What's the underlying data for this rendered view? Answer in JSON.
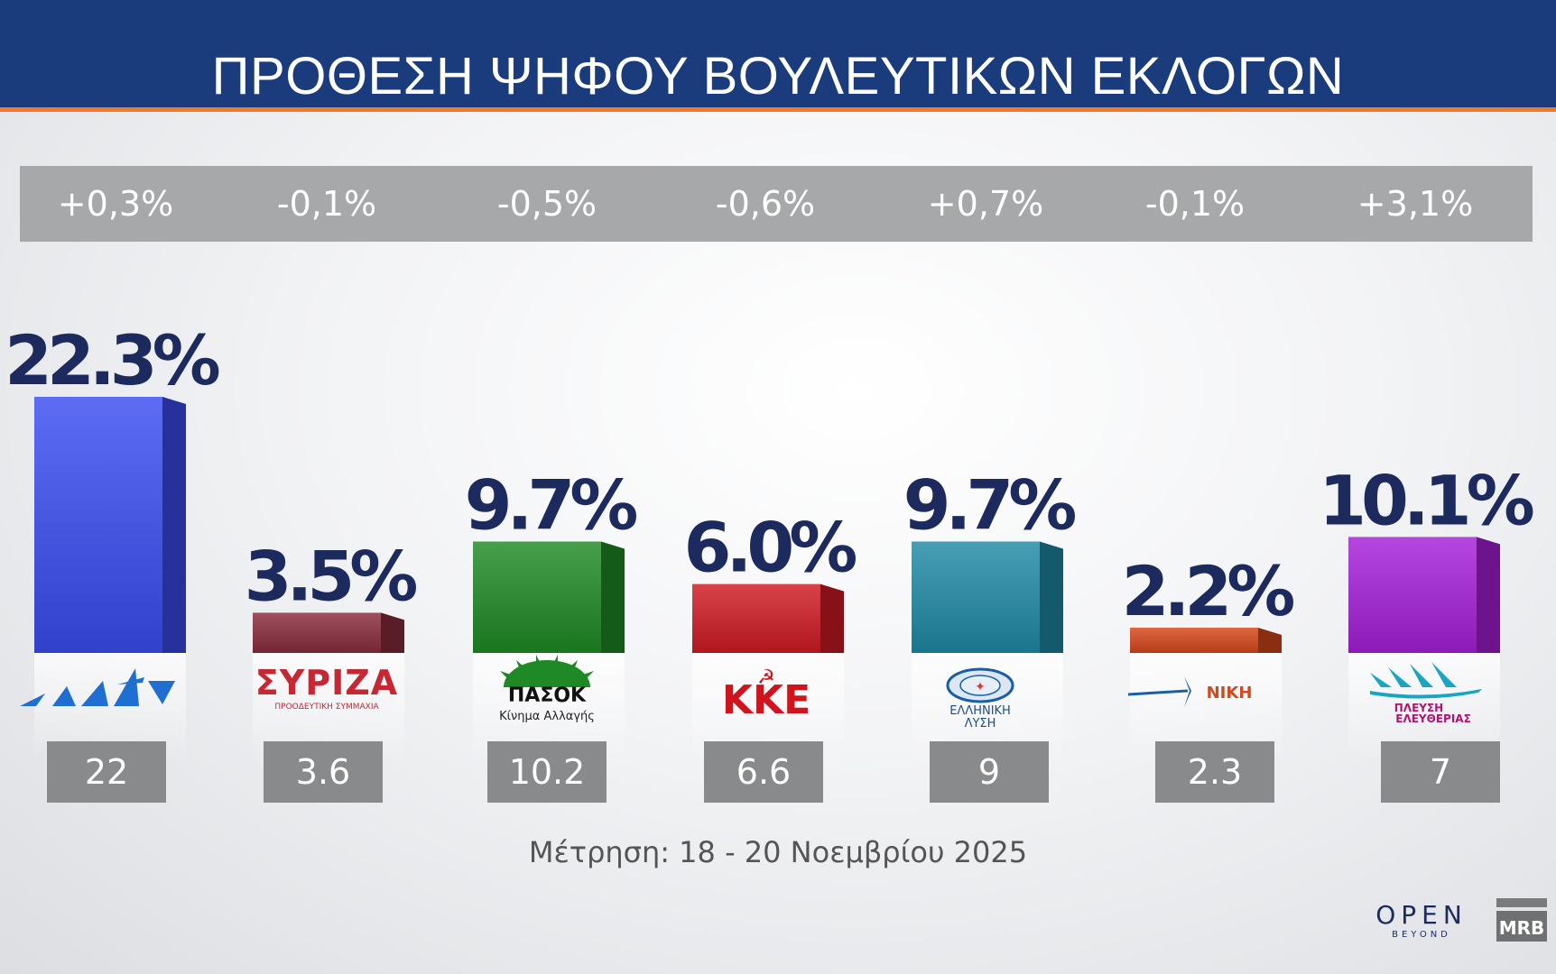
{
  "title": "ΠΡΟΘΕΣΗ ΨΗΦΟΥ ΒΟΥΛΕΥΤΙΚΩΝ ΕΚΛΟΓΩΝ",
  "footnote": "Μέτρηση: 18 - 20 Νοεμβρίου 2025",
  "broadcaster": "OPEN",
  "broadcaster_tagline": "BEYOND",
  "pollster": "MRB",
  "party_logos": [
    "ΝΔ",
    "ΣΥΡΙΖΑ",
    "ΠΑΣΟΚ",
    "ΚΚΕ",
    "ΕΛΛΗΝΙΚΗ ΛΥΣΗ",
    "ΝΙΚΗ",
    "ΠΛΕΥΣΗ ΕΛΕΥΘΕΡΙΑΣ"
  ],
  "party_logo_texts": {
    "syriza_sub": "ΠΡΟΟΔΕΥΤΙΚΗ ΣΥΜΜΑΧΙΑ",
    "pasok_name": "ΠΑΣΟΚ",
    "pasok_sub": "Κίνημα Αλλαγής",
    "kke_name": "ΚΚΕ",
    "el_lysi_line1": "ΕΛΛΗΝΙΚΗ",
    "el_lysi_line2": "ΛΥΣΗ",
    "niki_name": "ΝΙΚΗ",
    "plefsi_line1": "ΠΛΕΥΣΗ",
    "plefsi_line2": "ΕΛΕΥΘΕΡΙΑΣ"
  },
  "chart_data": {
    "type": "bar",
    "title": "ΠΡΟΘΕΣΗ ΨΗΦΟΥ ΒΟΥΛΕΥΤΙΚΩΝ ΕΚΛΟΓΩΝ",
    "xlabel": "",
    "ylabel": "",
    "ylim": [
      0,
      22.3
    ],
    "values": [
      22.3,
      3.5,
      9.7,
      6.0,
      9.7,
      2.2,
      10.1
    ],
    "value_labels": [
      "22.3%",
      "3.5%",
      "9.7%",
      "6.0%",
      "9.7%",
      "2.2%",
      "10.1%"
    ],
    "changes": [
      "+0,3%",
      "-0,1%",
      "-0,5%",
      "-0,6%",
      "+0,7%",
      "-0,1%",
      "+3,1%"
    ],
    "seat_values": [
      "22",
      "3.6",
      "10.2",
      "6.6",
      "9",
      "2.3",
      "7"
    ],
    "colors": [
      "#3a4cf0",
      "#8a2b3c",
      "#1f8a25",
      "#cf1a22",
      "#1e8aa6",
      "#d5461a",
      "#a51ed8"
    ],
    "grid": false,
    "legend": "none"
  }
}
